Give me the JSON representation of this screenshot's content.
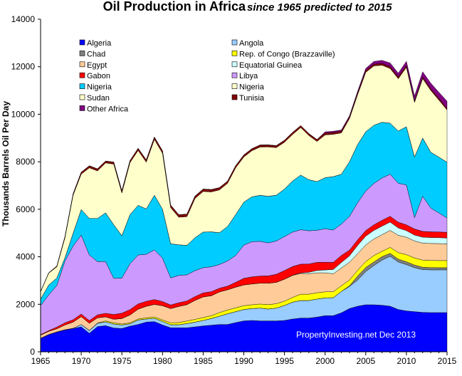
{
  "chart_data": {
    "type": "area",
    "title": "Oil Production in Africa",
    "subtitle": "since 1965 predicted to 2015",
    "ylabel": "Thousands Barrels Oil Per Day",
    "xlabel": "",
    "credit": "PropertyInvesting.net  Dec 2013",
    "xlim": [
      1965,
      2015
    ],
    "ylim": [
      0,
      14000
    ],
    "x_ticks": [
      1965,
      1970,
      1975,
      1980,
      1985,
      1990,
      1995,
      2000,
      2005,
      2010,
      2015
    ],
    "y_ticks": [
      0,
      2000,
      4000,
      6000,
      8000,
      10000,
      12000,
      14000
    ],
    "legend_position": "top",
    "x": [
      1965,
      1966,
      1967,
      1968,
      1969,
      1970,
      1971,
      1972,
      1973,
      1974,
      1975,
      1976,
      1977,
      1978,
      1979,
      1980,
      1981,
      1982,
      1983,
      1984,
      1985,
      1986,
      1987,
      1988,
      1989,
      1990,
      1991,
      1992,
      1993,
      1994,
      1995,
      1996,
      1997,
      1998,
      1999,
      2000,
      2001,
      2002,
      2003,
      2004,
      2005,
      2006,
      2007,
      2008,
      2009,
      2010,
      2011,
      2012,
      2013,
      2014,
      2015
    ],
    "series": [
      {
        "name": "Algeria",
        "color": "#0000ff",
        "values": [
          560,
          720,
          830,
          920,
          980,
          1050,
          780,
          1060,
          1100,
          1000,
          980,
          1080,
          1150,
          1250,
          1270,
          1130,
          1010,
          1010,
          1010,
          1050,
          1090,
          1120,
          1150,
          1150,
          1230,
          1300,
          1320,
          1300,
          1300,
          1300,
          1320,
          1380,
          1420,
          1420,
          1460,
          1520,
          1520,
          1640,
          1820,
          1920,
          1980,
          1980,
          1960,
          1920,
          1780,
          1720,
          1690,
          1660,
          1650,
          1650,
          1650
        ]
      },
      {
        "name": "Angola",
        "color": "#99ccff",
        "values": [
          10,
          10,
          10,
          10,
          10,
          100,
          110,
          140,
          160,
          170,
          150,
          100,
          190,
          130,
          140,
          150,
          130,
          130,
          180,
          200,
          230,
          280,
          350,
          450,
          460,
          480,
          500,
          540,
          500,
          540,
          630,
          710,
          740,
          740,
          760,
          750,
          760,
          900,
          930,
          1100,
          1400,
          1650,
          1900,
          2100,
          2000,
          1950,
          1850,
          1800,
          1800,
          1800,
          1800
        ]
      },
      {
        "name": "Chad",
        "color": "#808080",
        "values": [
          0,
          0,
          0,
          0,
          0,
          0,
          0,
          0,
          0,
          0,
          0,
          0,
          0,
          0,
          0,
          0,
          0,
          0,
          0,
          0,
          0,
          0,
          0,
          0,
          0,
          0,
          0,
          0,
          0,
          0,
          0,
          0,
          0,
          0,
          0,
          0,
          0,
          0,
          30,
          170,
          170,
          150,
          145,
          125,
          120,
          120,
          110,
          100,
          95,
          90,
          90
        ]
      },
      {
        "name": "Rep. of Congo (Brazzaville)",
        "color": "#ffff00",
        "values": [
          0,
          0,
          0,
          0,
          0,
          0,
          10,
          10,
          40,
          50,
          40,
          40,
          40,
          50,
          55,
          60,
          80,
          90,
          105,
          115,
          120,
          120,
          150,
          160,
          160,
          160,
          160,
          170,
          185,
          185,
          180,
          200,
          265,
          265,
          265,
          255,
          245,
          240,
          240,
          240,
          250,
          270,
          225,
          250,
          275,
          300,
          300,
          300,
          300,
          300,
          300
        ]
      },
      {
        "name": "Egypt",
        "color": "#ffcc99",
        "values": [
          130,
          130,
          130,
          200,
          260,
          330,
          300,
          220,
          170,
          150,
          230,
          330,
          415,
          485,
          530,
          600,
          600,
          680,
          690,
          800,
          870,
          840,
          870,
          850,
          870,
          875,
          875,
          880,
          900,
          900,
          925,
          925,
          875,
          860,
          840,
          800,
          760,
          750,
          750,
          700,
          700,
          700,
          700,
          715,
          730,
          735,
          715,
          715,
          715,
          715,
          700
        ]
      },
      {
        "name": "Equatorial Guinea",
        "color": "#ccffff",
        "values": [
          0,
          0,
          0,
          0,
          0,
          0,
          0,
          0,
          0,
          0,
          0,
          0,
          0,
          0,
          0,
          0,
          0,
          0,
          0,
          0,
          0,
          0,
          0,
          0,
          0,
          0,
          0,
          0,
          0,
          0,
          0,
          10,
          20,
          60,
          100,
          120,
          180,
          230,
          270,
          350,
          370,
          360,
          360,
          350,
          310,
          275,
          250,
          250,
          250,
          250,
          250
        ]
      },
      {
        "name": "Gabon",
        "color": "#ff0000",
        "values": [
          25,
          30,
          70,
          90,
          100,
          110,
          115,
          125,
          150,
          200,
          225,
          225,
          220,
          210,
          205,
          175,
          150,
          155,
          155,
          160,
          170,
          170,
          155,
          155,
          205,
          275,
          300,
          300,
          310,
          340,
          365,
          365,
          370,
          350,
          340,
          325,
          300,
          295,
          240,
          235,
          235,
          235,
          245,
          245,
          240,
          245,
          255,
          245,
          240,
          240,
          240
        ]
      },
      {
        "name": "Libya",
        "color": "#cc99ff",
        "values": [
          1220,
          1500,
          1750,
          2600,
          3100,
          3320,
          2760,
          2240,
          2180,
          1520,
          1480,
          1930,
          2060,
          1980,
          2090,
          1830,
          1140,
          1150,
          1100,
          1090,
          1060,
          1050,
          1000,
          1060,
          1130,
          1400,
          1480,
          1460,
          1390,
          1400,
          1430,
          1450,
          1450,
          1400,
          1350,
          1410,
          1360,
          1320,
          1420,
          1560,
          1660,
          1740,
          1780,
          1770,
          1640,
          1680,
          480,
          1480,
          1000,
          800,
          600
        ]
      },
      {
        "name": "Nigeria",
        "color": "#00ccff",
        "values": [
          270,
          420,
          320,
          140,
          540,
          1080,
          1540,
          1820,
          2050,
          2260,
          1780,
          2070,
          2090,
          1910,
          2300,
          2060,
          1440,
          1290,
          1240,
          1390,
          1500,
          1470,
          1340,
          1450,
          1720,
          1810,
          1890,
          1940,
          1960,
          1930,
          2000,
          2150,
          2300,
          2150,
          2050,
          2150,
          2250,
          2100,
          2300,
          2450,
          2500,
          2450,
          2350,
          2150,
          2200,
          2450,
          2550,
          2450,
          2350,
          2350,
          2350
        ]
      },
      {
        "name": "Nigeria",
        "color": "#ffffcc",
        "values": [
          0,
          0,
          0,
          0,
          0,
          0,
          0,
          0,
          0,
          0,
          0,
          0,
          0,
          0,
          0,
          0,
          0,
          0,
          0,
          0,
          0,
          0,
          0,
          0,
          0,
          0,
          0,
          0,
          0,
          0,
          0,
          0,
          0,
          0,
          0,
          0,
          0,
          0,
          0,
          0,
          0,
          0,
          0,
          0,
          0,
          0,
          0,
          0,
          0,
          0,
          0
        ]
      },
      {
        "name": "Sudan",
        "color": "#ffffcc",
        "values": [
          310,
          500,
          470,
          840,
          1600,
          1490,
          2130,
          2000,
          2100,
          2550,
          1800,
          2190,
          2310,
          1970,
          2350,
          2350,
          1520,
          1160,
          1210,
          1650,
          1710,
          1680,
          1800,
          1820,
          1970,
          1900,
          1940,
          2030,
          2080,
          2000,
          1970,
          1960,
          2000,
          1860,
          1690,
          1800,
          1780,
          1740,
          1820,
          2100,
          2500,
          2500,
          2400,
          2300,
          2200,
          2500,
          2300,
          2500,
          2600,
          2400,
          2200
        ]
      },
      {
        "name": "Tunisia",
        "color": "#800000",
        "values": [
          10,
          15,
          30,
          50,
          60,
          80,
          85,
          85,
          80,
          85,
          90,
          85,
          90,
          95,
          100,
          105,
          105,
          105,
          105,
          100,
          100,
          100,
          95,
          90,
          90,
          85,
          85,
          85,
          85,
          85,
          85,
          85,
          80,
          80,
          80,
          80,
          80,
          75,
          70,
          75,
          75,
          75,
          75,
          75,
          75,
          75,
          75,
          70,
          70,
          70,
          70
        ]
      },
      {
        "name": "Other Africa",
        "color": "#800080",
        "values": [
          0,
          0,
          0,
          0,
          0,
          0,
          0,
          0,
          0,
          0,
          0,
          0,
          0,
          0,
          0,
          0,
          0,
          0,
          0,
          0,
          0,
          0,
          0,
          0,
          0,
          0,
          0,
          0,
          0,
          0,
          0,
          0,
          0,
          0,
          0,
          50,
          50,
          50,
          50,
          70,
          90,
          115,
          130,
          160,
          160,
          180,
          200,
          220,
          240,
          260,
          300
        ]
      }
    ]
  }
}
